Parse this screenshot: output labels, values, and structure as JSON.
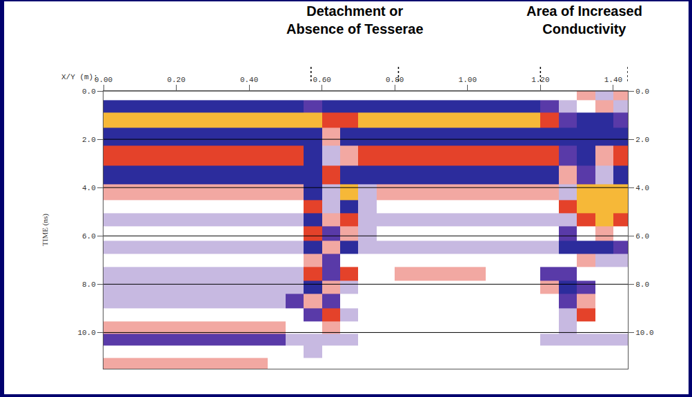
{
  "chart_data": {
    "type": "heatmap",
    "annotations": [
      {
        "text": [
          "Detachment or",
          "Absence of Tesserae"
        ],
        "x": [
          0.57,
          0.81
        ]
      },
      {
        "text": [
          "Area of Increased",
          "Conductivity"
        ],
        "x": [
          1.2,
          1.44
        ]
      }
    ],
    "x_label": "X/Y (m):",
    "y_label": "TIME (ns)",
    "xlim": [
      0,
      1.44
    ],
    "xticks": [
      {
        "value": 0,
        "label": "0.00"
      },
      {
        "value": 0.2,
        "label": "0.20"
      },
      {
        "value": 0.4,
        "label": "0.40"
      },
      {
        "value": 0.6,
        "label": "0.60"
      },
      {
        "value": 0.8,
        "label": "0.80"
      },
      {
        "value": 1.0,
        "label": "1.00"
      },
      {
        "value": 1.2,
        "label": "1.20"
      },
      {
        "value": 1.4,
        "label": "1.40"
      }
    ],
    "ylim": [
      11.5,
      0
    ],
    "yticks": [
      {
        "value": 0,
        "label": "0.0"
      },
      {
        "value": 2,
        "label": "2.0"
      },
      {
        "value": 4,
        "label": "4.0"
      },
      {
        "value": 6,
        "label": "6.0"
      },
      {
        "value": 8,
        "label": "8.0"
      },
      {
        "value": 10,
        "label": "10.0"
      }
    ],
    "grid": true,
    "zlim": [
      -3,
      3
    ],
    "x": [
      0.025,
      0.075,
      0.125,
      0.175,
      0.225,
      0.275,
      0.325,
      0.375,
      0.425,
      0.475,
      0.525,
      0.575,
      0.625,
      0.675,
      0.725,
      0.775,
      0.825,
      0.875,
      0.925,
      0.975,
      1.025,
      1.075,
      1.125,
      1.175,
      1.225,
      1.275,
      1.325,
      1.375,
      1.425
    ],
    "y": [
      0.15,
      0.6,
      1.2,
      1.85,
      2.7,
      3.5,
      4.25,
      4.8,
      5.3,
      5.9,
      6.5,
      7.0,
      7.6,
      8.1,
      8.7,
      9.3,
      9.8,
      10.3,
      10.8,
      11.3
    ],
    "z": [
      [
        0,
        0,
        0,
        0,
        0,
        0,
        0,
        0,
        0,
        0,
        0,
        0,
        0,
        0,
        0,
        0,
        0,
        0,
        0,
        0,
        0,
        0,
        0,
        0,
        0,
        0,
        1,
        -1,
        1
      ],
      [
        -3,
        -3,
        -3,
        -3,
        -3,
        -3,
        -3,
        -3,
        -3,
        -3,
        -3,
        -2,
        -3,
        -3,
        -3,
        -3,
        -3,
        -3,
        -3,
        -3,
        -3,
        -3,
        -3,
        -3,
        -2,
        -1,
        0,
        1,
        -1
      ],
      [
        3,
        3,
        3,
        3,
        3,
        3,
        3,
        3,
        3,
        3,
        3,
        3,
        2,
        2,
        3,
        3,
        3,
        3,
        3,
        3,
        3,
        3,
        3,
        3,
        2,
        -2,
        -3,
        -3,
        -2
      ],
      [
        -3,
        -3,
        -3,
        -3,
        -3,
        -3,
        -3,
        -3,
        -3,
        -3,
        -3,
        -3,
        1,
        -3,
        -3,
        -3,
        -3,
        -3,
        -3,
        -3,
        -3,
        -3,
        -3,
        -3,
        -3,
        -3,
        -3,
        -3,
        -3
      ],
      [
        2,
        2,
        2,
        2,
        2,
        2,
        2,
        2,
        2,
        2,
        2,
        -3,
        -1,
        1,
        2,
        2,
        2,
        2,
        2,
        2,
        2,
        2,
        2,
        2,
        2,
        -2,
        -3,
        1,
        2
      ],
      [
        -3,
        -3,
        -3,
        -3,
        -3,
        -3,
        -3,
        -3,
        -3,
        -3,
        -3,
        -3,
        2,
        -3,
        -3,
        -3,
        -3,
        -3,
        -3,
        -3,
        -3,
        -3,
        -3,
        -3,
        -3,
        1,
        -2,
        -1,
        -3
      ],
      [
        1,
        1,
        1,
        1,
        1,
        1,
        1,
        1,
        1,
        1,
        1,
        -3,
        -1,
        3,
        -1,
        1,
        1,
        1,
        1,
        1,
        1,
        1,
        1,
        1,
        1,
        -1,
        3,
        3,
        3
      ],
      [
        0,
        0,
        0,
        0,
        0,
        0,
        0,
        0,
        0,
        0,
        0,
        2,
        -1,
        -3,
        -1,
        0,
        0,
        0,
        0,
        0,
        0,
        0,
        0,
        0,
        0,
        2,
        3,
        3,
        3
      ],
      [
        -1,
        -1,
        -1,
        -1,
        -1,
        -1,
        -1,
        -1,
        -1,
        -1,
        -1,
        -3,
        1,
        2,
        -1,
        -1,
        -1,
        -1,
        -1,
        -1,
        -1,
        -1,
        -1,
        -1,
        -1,
        -1,
        2,
        3,
        2
      ],
      [
        0,
        0,
        0,
        0,
        0,
        0,
        0,
        0,
        0,
        0,
        0,
        2,
        -2,
        1,
        -1,
        0,
        0,
        0,
        0,
        0,
        0,
        0,
        0,
        0,
        0,
        -2,
        0,
        1,
        0
      ],
      [
        -1,
        -1,
        -1,
        -1,
        -1,
        -1,
        -1,
        -1,
        -1,
        -1,
        -1,
        -3,
        1,
        -3,
        -1,
        -1,
        -1,
        -1,
        -1,
        -1,
        -1,
        -1,
        -1,
        -1,
        -1,
        -3,
        -3,
        -3,
        -2
      ],
      [
        0,
        0,
        0,
        0,
        0,
        0,
        0,
        0,
        0,
        0,
        0,
        1,
        -2,
        0,
        0,
        0,
        0,
        0,
        0,
        0,
        0,
        0,
        0,
        0,
        0,
        0,
        1,
        -1,
        -1
      ],
      [
        -1,
        -1,
        -1,
        -1,
        -1,
        -1,
        -1,
        -1,
        -1,
        -1,
        -1,
        2,
        -2,
        2,
        0,
        0,
        1,
        1,
        1,
        1,
        1,
        0,
        0,
        0,
        -2,
        -2,
        0,
        0,
        0
      ],
      [
        -1,
        -1,
        -1,
        -1,
        -1,
        -1,
        -1,
        -1,
        -1,
        -1,
        -1,
        -3,
        1,
        -1,
        0,
        0,
        0,
        0,
        0,
        0,
        0,
        0,
        0,
        0,
        1,
        -3,
        -2,
        0,
        0
      ],
      [
        -1,
        -1,
        -1,
        -1,
        -1,
        -1,
        -1,
        -1,
        -1,
        -1,
        -2,
        1,
        -2,
        0,
        0,
        0,
        0,
        0,
        0,
        0,
        0,
        0,
        0,
        0,
        0,
        -2,
        1,
        0,
        0
      ],
      [
        0,
        0,
        0,
        0,
        0,
        0,
        0,
        0,
        0,
        0,
        0,
        -2,
        2,
        -1,
        0,
        0,
        0,
        0,
        0,
        0,
        0,
        0,
        0,
        0,
        0,
        -1,
        2,
        0,
        0
      ],
      [
        1,
        1,
        1,
        1,
        1,
        1,
        1,
        1,
        1,
        1,
        0,
        0,
        1,
        0,
        0,
        0,
        0,
        0,
        0,
        0,
        0,
        0,
        0,
        0,
        0,
        -1,
        0,
        0,
        0
      ],
      [
        -2,
        -2,
        -2,
        -2,
        -2,
        -2,
        -2,
        -2,
        -2,
        -2,
        -1,
        -1,
        -1,
        -1,
        0,
        0,
        0,
        0,
        0,
        0,
        0,
        0,
        0,
        0,
        -1,
        -1,
        -1,
        -1,
        -1
      ],
      [
        0,
        0,
        0,
        0,
        0,
        0,
        0,
        0,
        0,
        0,
        0,
        -1,
        0,
        0,
        0,
        0,
        0,
        0,
        0,
        0,
        0,
        0,
        0,
        0,
        0,
        0,
        0,
        0,
        0
      ],
      [
        1,
        1,
        1,
        1,
        1,
        1,
        1,
        1,
        1,
        0,
        0,
        0,
        0,
        0,
        0,
        0,
        0,
        0,
        0,
        0,
        0,
        0,
        0,
        0,
        0,
        0,
        0,
        0,
        0
      ]
    ]
  }
}
